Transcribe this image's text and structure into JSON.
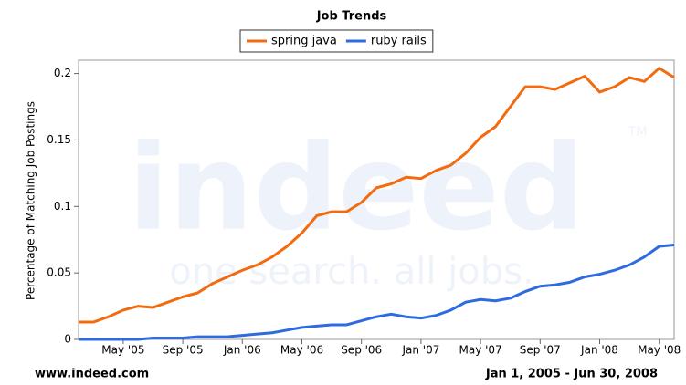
{
  "chart_data": {
    "type": "line",
    "title": "Job Trends",
    "y_label": "Percentage of Matching Job Postings",
    "watermark": "indeed",
    "watermark_tagline": "one search. all jobs.",
    "watermark_tm": "TM",
    "source": "www.indeed.com",
    "date_range": "Jan 1, 2005 - Jun 30, 2008",
    "x": [
      "2005-02",
      "2005-03",
      "2005-04",
      "2005-05",
      "2005-06",
      "2005-07",
      "2005-08",
      "2005-09",
      "2005-10",
      "2005-11",
      "2005-12",
      "2006-01",
      "2006-02",
      "2006-03",
      "2006-04",
      "2006-05",
      "2006-06",
      "2006-07",
      "2006-08",
      "2006-09",
      "2006-10",
      "2006-11",
      "2006-12",
      "2007-01",
      "2007-02",
      "2007-03",
      "2007-04",
      "2007-05",
      "2007-06",
      "2007-07",
      "2007-08",
      "2007-09",
      "2007-10",
      "2007-11",
      "2007-12",
      "2008-01",
      "2008-02",
      "2008-03",
      "2008-04",
      "2008-05",
      "2008-06"
    ],
    "series": [
      {
        "name": "spring java",
        "color": "#f26b0f",
        "values": [
          0.013,
          0.013,
          0.017,
          0.022,
          0.025,
          0.024,
          0.028,
          0.032,
          0.035,
          0.042,
          0.047,
          0.052,
          0.056,
          0.062,
          0.07,
          0.08,
          0.093,
          0.096,
          0.096,
          0.103,
          0.114,
          0.117,
          0.122,
          0.121,
          0.127,
          0.131,
          0.14,
          0.152,
          0.16,
          0.175,
          0.19,
          0.19,
          0.188,
          0.193,
          0.198,
          0.186,
          0.19,
          0.197,
          0.194,
          0.204,
          0.197
        ]
      },
      {
        "name": "ruby rails",
        "color": "#2f6be0",
        "values": [
          0,
          0,
          0,
          0,
          0,
          0.001,
          0.001,
          0.001,
          0.002,
          0.002,
          0.002,
          0.003,
          0.004,
          0.005,
          0.007,
          0.009,
          0.01,
          0.011,
          0.011,
          0.014,
          0.017,
          0.019,
          0.017,
          0.016,
          0.018,
          0.022,
          0.028,
          0.03,
          0.029,
          0.031,
          0.036,
          0.04,
          0.041,
          0.043,
          0.047,
          0.049,
          0.052,
          0.056,
          0.062,
          0.07,
          0.071
        ]
      }
    ],
    "xlim": [
      "2005-02",
      "2008-06"
    ],
    "xticks": [
      {
        "value": "2005-05",
        "label": "May '05"
      },
      {
        "value": "2005-09",
        "label": "Sep '05"
      },
      {
        "value": "2006-01",
        "label": "Jan '06"
      },
      {
        "value": "2006-05",
        "label": "May '06"
      },
      {
        "value": "2006-09",
        "label": "Sep '06"
      },
      {
        "value": "2007-01",
        "label": "Jan '07"
      },
      {
        "value": "2007-05",
        "label": "May '07"
      },
      {
        "value": "2007-09",
        "label": "Sep '07"
      },
      {
        "value": "2008-01",
        "label": "Jan '08"
      },
      {
        "value": "2008-05",
        "label": "May '08"
      }
    ],
    "ylim": [
      0,
      0.21
    ],
    "yticks": [
      0,
      0.05,
      0.1,
      0.15,
      0.2
    ],
    "legend": "top"
  }
}
